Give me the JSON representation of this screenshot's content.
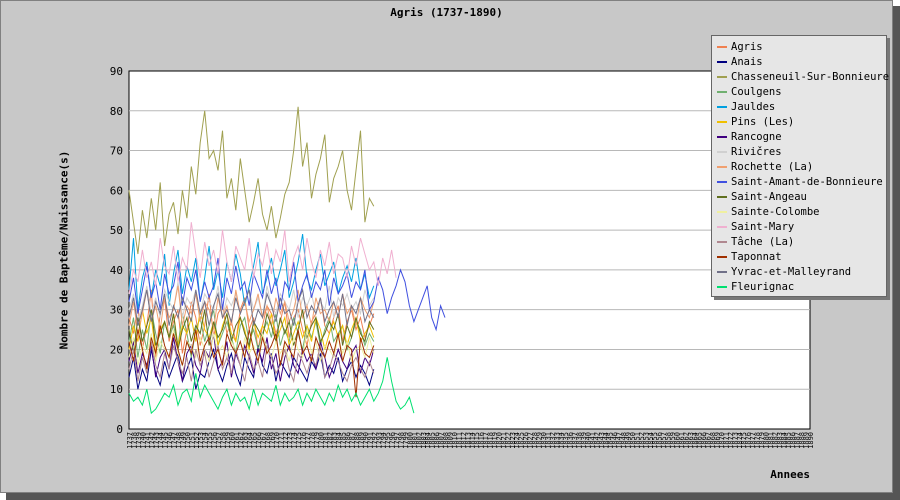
{
  "chart_data": {
    "type": "line",
    "title": "Agris (1737-1890)",
    "xlabel": "Annees",
    "ylabel": "Nombre de Baptême/Naissance(s)",
    "xlim": [
      1737,
      1890
    ],
    "ylim": [
      0,
      90
    ],
    "yticks": [
      0,
      10,
      20,
      30,
      40,
      50,
      60,
      70,
      80,
      90
    ],
    "grid": true,
    "legend_position": "top-right",
    "series": [
      {
        "name": "Agris",
        "color": "#f08050",
        "x_start": 1737,
        "values": [
          28,
          24,
          31,
          20,
          26,
          35,
          18,
          29,
          33,
          22,
          27,
          30,
          19,
          25,
          32,
          28,
          21,
          26,
          34,
          23,
          29,
          31,
          24,
          27,
          22,
          30,
          33,
          25,
          28,
          20,
          26,
          31,
          29,
          24,
          27,
          32,
          23,
          28,
          30,
          25,
          21,
          27,
          29,
          33,
          26,
          24,
          28,
          31,
          22,
          27,
          30,
          25,
          28,
          23,
          26,
          29
        ]
      },
      {
        "name": "Anais",
        "color": "#000080",
        "x_start": 1737,
        "values": [
          13,
          18,
          10,
          15,
          12,
          20,
          14,
          11,
          17,
          13,
          16,
          19,
          12,
          15,
          18,
          10,
          14,
          13,
          17,
          20,
          15,
          12,
          16,
          19,
          14,
          11,
          18,
          15,
          13,
          21,
          16,
          14,
          19,
          12,
          17,
          15,
          13,
          18,
          16,
          14,
          12,
          17,
          15,
          19,
          13,
          16,
          14,
          18,
          12,
          15,
          17,
          13,
          16,
          14,
          11,
          15
        ]
      },
      {
        "name": "Chasseneuil-Sur-Bonnieure",
        "color": "#a0a050",
        "x_start": 1737,
        "values": [
          60,
          52,
          44,
          55,
          48,
          58,
          50,
          62,
          46,
          54,
          57,
          49,
          60,
          53,
          66,
          59,
          72,
          80,
          68,
          70,
          65,
          75,
          58,
          63,
          55,
          68,
          60,
          52,
          57,
          63,
          54,
          50,
          56,
          48,
          53,
          59,
          62,
          70,
          81,
          66,
          72,
          58,
          64,
          68,
          74,
          57,
          63,
          66,
          70,
          60,
          55,
          65,
          75,
          52,
          58,
          56
        ]
      },
      {
        "name": "Coulgens",
        "color": "#70b070",
        "x_start": 1737,
        "values": [
          22,
          28,
          18,
          25,
          20,
          30,
          24,
          19,
          27,
          23,
          26,
          21,
          29,
          24,
          18,
          25,
          28,
          22,
          26,
          30,
          21,
          24,
          27,
          23,
          19,
          26,
          28,
          22,
          25,
          20,
          24,
          27,
          23,
          29,
          21,
          25,
          22,
          28,
          24,
          20,
          26,
          23,
          27,
          21,
          25,
          28,
          22,
          24,
          26,
          20,
          23,
          27,
          25,
          21,
          24,
          22
        ]
      },
      {
        "name": "Jauldes",
        "color": "#00a0e0",
        "x_start": 1737,
        "values": [
          35,
          48,
          30,
          38,
          42,
          33,
          40,
          36,
          44,
          31,
          39,
          45,
          34,
          41,
          37,
          43,
          32,
          38,
          46,
          35,
          40,
          33,
          42,
          37,
          44,
          39,
          31,
          36,
          41,
          47,
          34,
          38,
          43,
          36,
          40,
          45,
          33,
          37,
          42,
          49,
          38,
          35,
          40,
          44,
          36,
          39,
          42,
          34,
          38,
          41,
          37,
          43,
          35,
          39,
          33,
          36
        ]
      },
      {
        "name": "Pins (Les)",
        "color": "#f0c000",
        "x_start": 1737,
        "values": [
          20,
          26,
          22,
          30,
          24,
          28,
          19,
          25,
          27,
          23,
          29,
          21,
          26,
          24,
          28,
          22,
          30,
          25,
          23,
          27,
          21,
          26,
          29,
          24,
          22,
          28,
          25,
          20,
          27,
          23,
          26,
          24,
          29,
          22,
          25,
          28,
          21,
          24,
          27,
          23,
          26,
          22,
          28,
          25,
          20,
          24,
          27,
          23,
          26,
          21,
          25,
          28,
          22,
          24,
          26,
          23
        ]
      },
      {
        "name": "Rancogne",
        "color": "#400080",
        "x_start": 1737,
        "values": [
          17,
          22,
          14,
          19,
          16,
          21,
          13,
          18,
          20,
          15,
          23,
          17,
          12,
          19,
          21,
          16,
          14,
          20,
          18,
          24,
          15,
          17,
          22,
          13,
          19,
          16,
          21,
          18,
          14,
          20,
          17,
          23,
          15,
          19,
          12,
          18,
          21,
          16,
          14,
          20,
          17,
          19,
          15,
          22,
          18,
          13,
          16,
          20,
          17,
          15,
          19,
          21,
          14,
          18,
          16,
          20
        ]
      },
      {
        "name": "Rivičres",
        "color": "#d0d0d0",
        "x_start": 1737,
        "values": [
          30,
          34,
          27,
          31,
          36,
          29,
          33,
          28,
          35,
          32,
          30,
          37,
          28,
          33,
          31,
          35,
          29,
          34,
          32,
          30,
          36,
          28,
          33,
          31,
          34,
          29,
          32,
          35,
          30,
          33,
          28,
          36,
          31,
          29,
          34,
          32,
          30,
          35,
          28,
          33,
          31,
          34,
          29,
          32,
          30,
          36,
          28,
          33,
          31,
          34,
          30,
          32,
          29,
          35,
          31,
          33
        ]
      },
      {
        "name": "Rochette (La)",
        "color": "#f0a070",
        "x_start": 1737,
        "values": [
          26,
          32,
          24,
          29,
          35,
          27,
          31,
          25,
          33,
          28,
          30,
          36,
          26,
          31,
          29,
          34,
          27,
          32,
          30,
          25,
          33,
          28,
          31,
          26,
          35,
          29,
          32,
          27,
          30,
          34,
          28,
          31,
          26,
          33,
          29,
          32,
          27,
          30,
          35,
          28,
          31,
          26,
          33,
          29,
          30,
          27,
          32,
          28,
          34,
          29,
          31,
          26,
          33,
          30,
          28,
          32
        ]
      },
      {
        "name": "Saint-Amant-de-Bonnieure",
        "color": "#4050e0",
        "x_start": 1737,
        "values": [
          32,
          38,
          29,
          35,
          41,
          33,
          37,
          30,
          39,
          34,
          36,
          42,
          31,
          38,
          35,
          40,
          32,
          37,
          33,
          36,
          43,
          30,
          38,
          34,
          41,
          35,
          37,
          31,
          39,
          36,
          33,
          40,
          34,
          38,
          30,
          37,
          35,
          42,
          32,
          36,
          39,
          33,
          37,
          35,
          40,
          31,
          38,
          34,
          36,
          39,
          33,
          37,
          35,
          40,
          30,
          32,
          38,
          35,
          29,
          33,
          36,
          40,
          37,
          31,
          27,
          30,
          33,
          36,
          28,
          25,
          31,
          28
        ]
      },
      {
        "name": "Saint-Angeau",
        "color": "#607020",
        "x_start": 1737,
        "values": [
          25,
          19,
          28,
          22,
          26,
          30,
          21,
          24,
          27,
          23,
          29,
          20,
          25,
          28,
          22,
          26,
          24,
          30,
          21,
          27,
          23,
          25,
          29,
          22,
          26,
          28,
          24,
          21,
          27,
          25,
          23,
          29,
          26,
          22,
          28,
          24,
          27,
          21,
          25,
          30,
          23,
          26,
          28,
          22,
          24,
          27,
          25,
          29,
          21,
          26,
          23,
          28,
          24,
          22,
          27,
          25
        ]
      },
      {
        "name": "Sainte-Colombe",
        "color": "#f0f0a0",
        "x_start": 1737,
        "values": [
          18,
          23,
          16,
          21,
          19,
          24,
          17,
          22,
          20,
          18,
          25,
          19,
          16,
          22,
          21,
          18,
          23,
          20,
          17,
          24,
          19,
          21,
          18,
          22,
          20,
          16,
          23,
          19,
          21,
          17,
          24,
          20,
          18,
          22,
          19,
          21,
          17,
          23,
          20,
          18,
          25,
          19,
          22,
          17,
          21,
          20,
          18,
          23,
          19,
          22,
          17,
          20,
          21,
          18,
          23,
          19
        ]
      },
      {
        "name": "Saint-Mary",
        "color": "#f0b0d0",
        "x_start": 1737,
        "values": [
          34,
          40,
          37,
          45,
          38,
          42,
          36,
          48,
          41,
          39,
          46,
          37,
          43,
          40,
          52,
          44,
          38,
          47,
          41,
          45,
          39,
          50,
          42,
          37,
          46,
          43,
          40,
          48,
          38,
          44,
          41,
          47,
          39,
          45,
          42,
          50,
          37,
          43,
          46,
          40,
          48,
          42,
          38,
          45,
          41,
          47,
          39,
          44,
          43,
          38,
          46,
          41,
          48,
          44,
          40,
          42,
          36,
          43,
          39,
          45,
          38
        ]
      },
      {
        "name": "Tâche (La)",
        "color": "#b08890",
        "x_start": 1737,
        "values": [
          15,
          20,
          12,
          18,
          14,
          22,
          16,
          13,
          19,
          15,
          21,
          17,
          14,
          18,
          12,
          20,
          16,
          19,
          13,
          17,
          21,
          15,
          18,
          14,
          20,
          16,
          12,
          19,
          15,
          17,
          13,
          21,
          18,
          14,
          16,
          20,
          15,
          12,
          19,
          17,
          14,
          18,
          16,
          21,
          13,
          15,
          19,
          17,
          14,
          12,
          16,
          18,
          15,
          13,
          17,
          14
        ]
      },
      {
        "name": "Taponnat",
        "color": "#a03000",
        "x_start": 1737,
        "values": [
          22,
          17,
          25,
          20,
          15,
          23,
          19,
          26,
          21,
          18,
          24,
          20,
          16,
          22,
          19,
          25,
          17,
          21,
          23,
          18,
          20,
          16,
          24,
          21,
          19,
          22,
          18,
          25,
          20,
          17,
          23,
          19,
          21,
          24,
          16,
          22,
          20,
          18,
          25,
          19,
          21,
          17,
          23,
          20,
          18,
          22,
          19,
          24,
          17,
          21,
          20,
          8,
          23,
          19,
          18,
          21
        ]
      },
      {
        "name": "Yvrac-et-Malleyrand",
        "color": "#707088",
        "x_start": 1737,
        "values": [
          28,
          33,
          26,
          30,
          35,
          27,
          32,
          29,
          34,
          26,
          31,
          28,
          33,
          30,
          27,
          35,
          29,
          32,
          26,
          31,
          34,
          28,
          30,
          27,
          33,
          29,
          32,
          35,
          26,
          30,
          28,
          34,
          31,
          27,
          33,
          29,
          30,
          26,
          32,
          35,
          28,
          31,
          29,
          33,
          27,
          30,
          32,
          28,
          34,
          26,
          31,
          29,
          33,
          27,
          30,
          28
        ]
      },
      {
        "name": "Fleurignac",
        "color": "#00e070",
        "x_start": 1737,
        "values": [
          9,
          7,
          8,
          6,
          10,
          4,
          5,
          7,
          9,
          8,
          11,
          6,
          9,
          10,
          7,
          14,
          8,
          11,
          9,
          7,
          5,
          8,
          10,
          6,
          9,
          7,
          8,
          5,
          10,
          6,
          9,
          8,
          7,
          11,
          6,
          9,
          7,
          8,
          10,
          6,
          9,
          7,
          10,
          8,
          6,
          9,
          7,
          11,
          8,
          10,
          7,
          9,
          6,
          8,
          10,
          7,
          9,
          12,
          18,
          12,
          7,
          5,
          6,
          8,
          4
        ]
      }
    ]
  }
}
